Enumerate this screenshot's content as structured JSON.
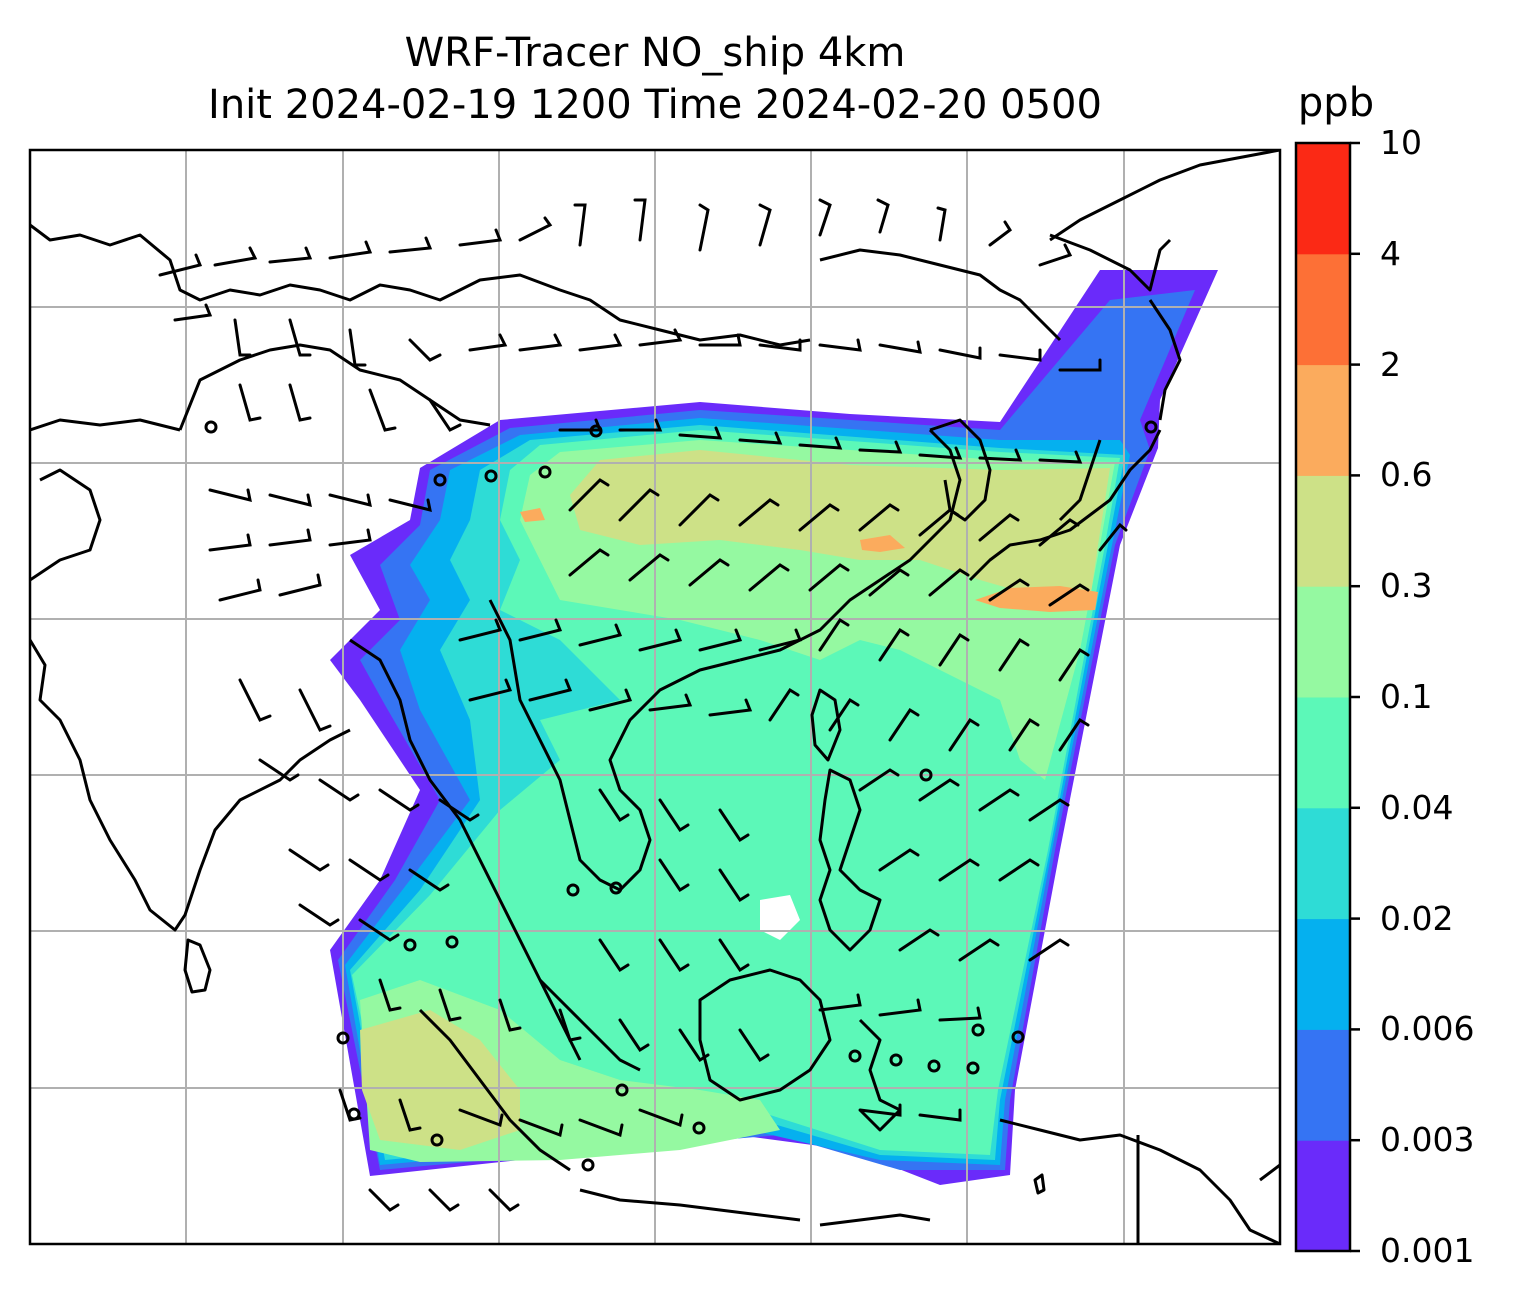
{
  "title_line1": "WRF-Tracer NO_ship 4km",
  "title_line2": "Init 2024-02-19 1200 Time 2024-02-20 0500",
  "colorbar": {
    "unit": "ppb",
    "levels": [
      "0.001",
      "0.003",
      "0.006",
      "0.02",
      "0.04",
      "0.1",
      "0.3",
      "0.6",
      "2",
      "4",
      "10"
    ],
    "colors": [
      "#6a2bfa",
      "#3574f3",
      "#05b0ef",
      "#2edcd6",
      "#5cf8b8",
      "#95f9a1",
      "#cde187",
      "#fbab5d",
      "#fd7036",
      "#fb2915"
    ]
  },
  "map": {
    "gridlines": true,
    "gridline_color": "#b0b0b0",
    "coastline_color": "#000000",
    "wind_barbs": true,
    "field_name": "NO_ship tracer concentration"
  }
}
